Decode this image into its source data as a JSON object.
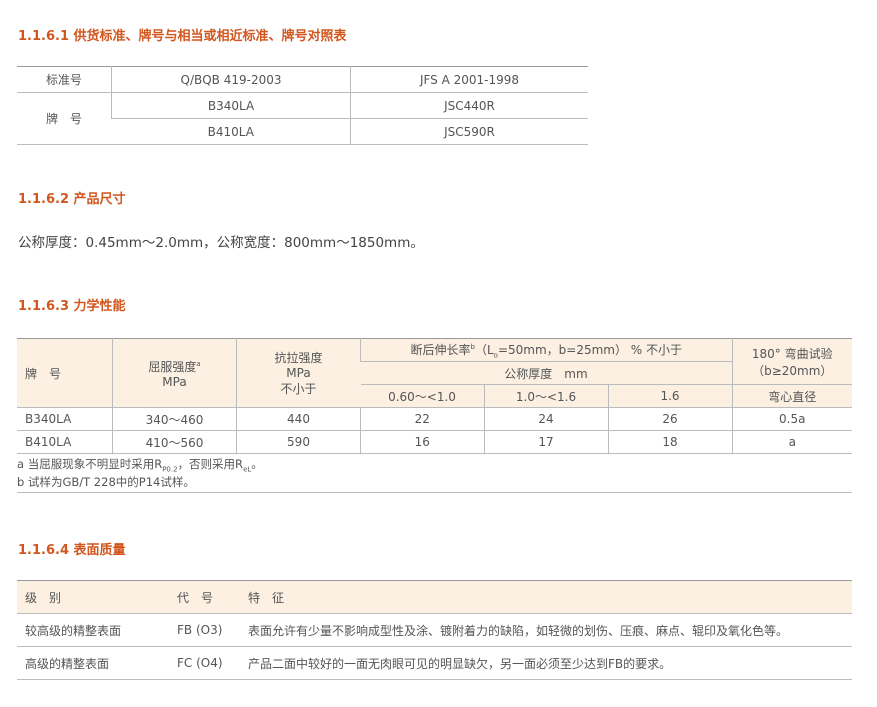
{
  "s1": {
    "title": "1.1.6.1 供货标准、牌号与相当或相近标准、牌号对照表",
    "h0": "标准号",
    "h1": "Q/BQB 419-2003",
    "h2": "JFS A 2001-1998",
    "r": "牌　号",
    "rows": [
      [
        "B340LA",
        "JSC440R"
      ],
      [
        "B410LA",
        "JSC590R"
      ]
    ]
  },
  "s2": {
    "title": "1.1.6.2 产品尺寸",
    "text": "公称厚度：0.45mm～2.0mm，公称宽度：800mm～1850mm。"
  },
  "s3": {
    "title": "1.1.6.3 力学性能",
    "h_grade": "牌　号",
    "h_yield": "屈服强度",
    "h_yield_sup": "a",
    "h_yield_unit": "MPa",
    "h_tensile": "抗拉强度",
    "h_tensile_unit": "MPa",
    "h_tensile_note": "不小于",
    "h_elong": "断后伸长率",
    "h_elong_sup": "b",
    "h_elong_cond": "（L",
    "h_elong_sub": "o",
    "h_elong_rest": "=50mm，b=25mm） % 不小于",
    "h_thick": "公称厚度　mm",
    "h_bend": "180° 弯曲试验",
    "h_bend_cond": "（b≥20mm）",
    "h_t1": "0.60～<1.0",
    "h_t2": "1.0～<1.6",
    "h_t3": "1.6",
    "h_bend_dia": "弯心直径",
    "rows": [
      [
        "B340LA",
        "340～460",
        "440",
        "22",
        "24",
        "26",
        "0.5a"
      ],
      [
        "B410LA",
        "410～560",
        "590",
        "16",
        "17",
        "18",
        "a"
      ]
    ],
    "fn_a1": "a 当屈服现象不明显时采用R",
    "fn_a_sub1": "P0.2",
    "fn_a2": "，否则采用R",
    "fn_a_sub2": "eL",
    "fn_a3": "。",
    "fn_b": "b 试样为GB/T 228中的P14试样。"
  },
  "s4": {
    "title": "1.1.6.4 表面质量",
    "h": [
      "级　别",
      "代　号",
      "特　征"
    ],
    "rows": [
      [
        "较高级的精整表面",
        "FB (O3)",
        "表面允许有少量不影响成型性及涂、镀附着力的缺陷，如轻微的划伤、压痕、麻点、辊印及氧化色等。"
      ],
      [
        "高级的精整表面",
        "FC (O4)",
        "产品二面中较好的一面无肉眼可见的明显缺欠，另一面必须至少达到FB的要求。"
      ]
    ]
  }
}
